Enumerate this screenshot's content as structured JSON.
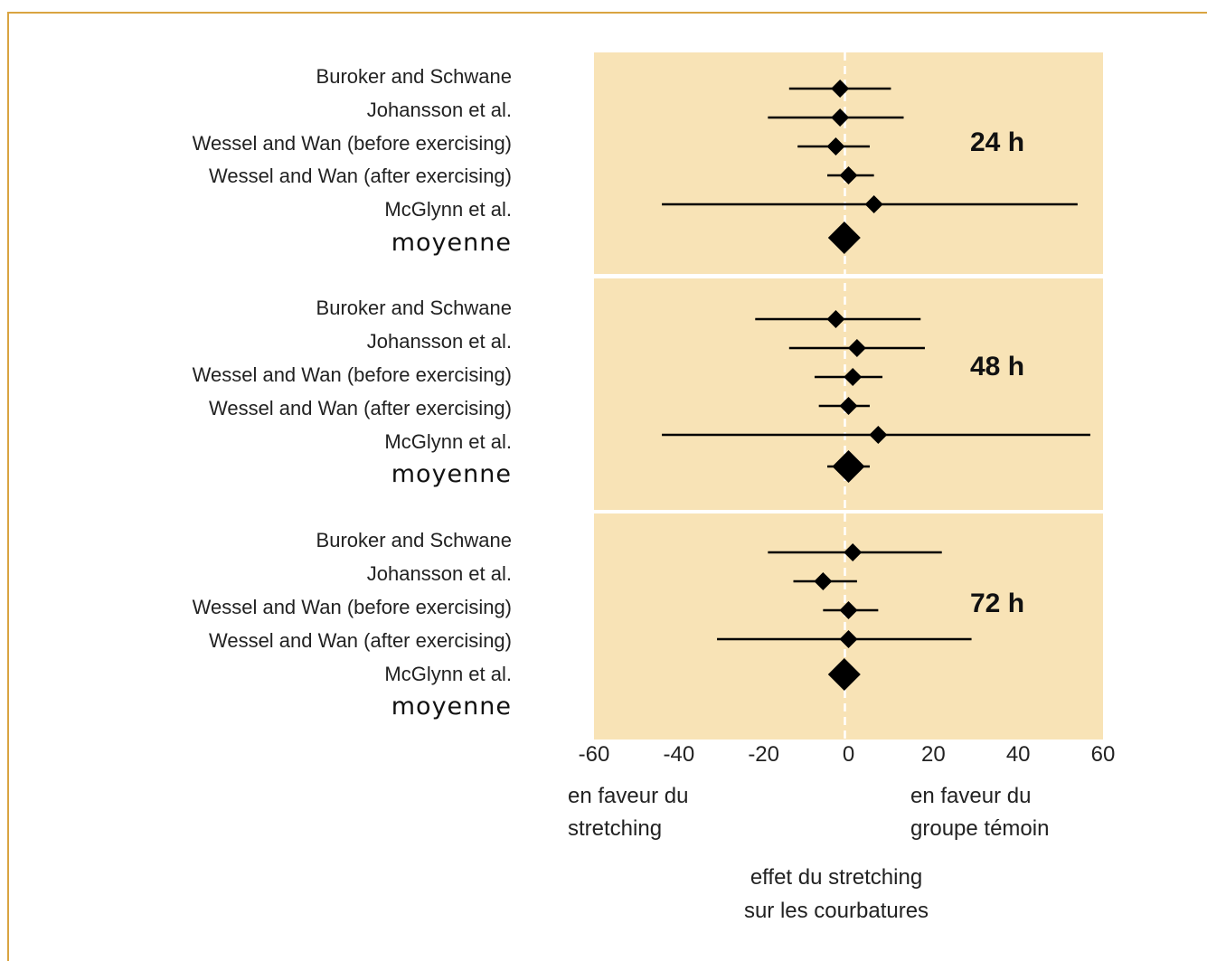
{
  "colors": {
    "panel_bg": "#f8e3b6",
    "frame": "#d9a441",
    "mark": "#000000",
    "zero_line": "#ffffff"
  },
  "chart_data": {
    "type": "forest",
    "xlim": [
      -60,
      60
    ],
    "xticks": [
      "-60",
      "-40",
      "-20",
      "0",
      "20",
      "40",
      "60"
    ],
    "left_note": [
      "en faveur du",
      "stretching"
    ],
    "right_note": [
      "en faveur du",
      "groupe témoin"
    ],
    "xlabel": [
      "effet du stretching",
      "sur les courbatures"
    ],
    "panels": [
      {
        "label": "24 h",
        "studies": [
          {
            "name": "Buroker and Schwane",
            "estimate": -2,
            "low": -14,
            "high": 10
          },
          {
            "name": "Johansson et al.",
            "estimate": -2,
            "low": -19,
            "high": 13
          },
          {
            "name": "Wessel and Wan (before exercising)",
            "estimate": -3,
            "low": -12,
            "high": 5
          },
          {
            "name": "Wessel and Wan (after exercising)",
            "estimate": 0,
            "low": -5,
            "high": 6
          },
          {
            "name": "McGlynn et al.",
            "estimate": 6,
            "low": -44,
            "high": 54
          }
        ],
        "mean": {
          "name": "moyenne",
          "estimate": -1,
          "low": -1,
          "high": -1
        }
      },
      {
        "label": "48 h",
        "studies": [
          {
            "name": "Buroker and Schwane",
            "estimate": -3,
            "low": -22,
            "high": 17
          },
          {
            "name": "Johansson et al.",
            "estimate": 2,
            "low": -14,
            "high": 18
          },
          {
            "name": "Wessel and Wan (before exercising)",
            "estimate": 1,
            "low": -8,
            "high": 8
          },
          {
            "name": "Wessel and Wan (after exercising)",
            "estimate": 0,
            "low": -7,
            "high": 5
          },
          {
            "name": "McGlynn et al.",
            "estimate": 7,
            "low": -44,
            "high": 57
          }
        ],
        "mean": {
          "name": "moyenne",
          "estimate": 0,
          "low": -5,
          "high": 5
        }
      },
      {
        "label": "72 h",
        "studies": [
          {
            "name": "Buroker and Schwane",
            "estimate": 1,
            "low": -19,
            "high": 22
          },
          {
            "name": "Johansson et al.",
            "estimate": -6,
            "low": -13,
            "high": 2
          },
          {
            "name": "Wessel and Wan (before exercising)",
            "estimate": 0,
            "low": -6,
            "high": 7
          },
          {
            "name": "Wessel and Wan (after exercising)",
            "estimate": 0,
            "low": -31,
            "high": 29
          },
          {
            "name": "McGlynn et al.",
            "estimate": -1,
            "low": -1,
            "high": -1
          }
        ],
        "mean": {
          "name": "moyenne",
          "estimate": -1,
          "low": -1,
          "high": -1
        }
      }
    ]
  }
}
